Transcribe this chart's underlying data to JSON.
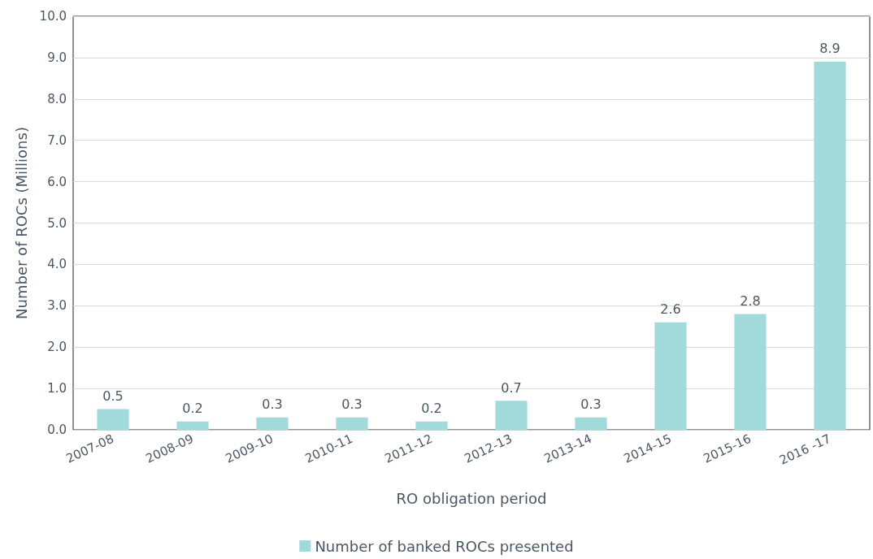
{
  "chart_data": {
    "type": "bar",
    "xlabel": "RO obligation period",
    "ylabel": "Number of ROCs (Millions)",
    "categories": [
      "2007-08",
      "2008-09",
      "2009-10",
      "2010-11",
      "2011-12",
      "2012-13",
      "2013-14",
      "2014-15",
      "2015-16",
      "2016 -17"
    ],
    "series": [
      {
        "name": "Number of banked ROCs presented",
        "color": "#a2dadb",
        "values": [
          0.5,
          0.2,
          0.3,
          0.3,
          0.2,
          0.7,
          0.3,
          2.6,
          2.8,
          8.9
        ]
      }
    ],
    "ylim": [
      0,
      10
    ],
    "yticks": [
      {
        "value": 0,
        "label": "0.0"
      },
      {
        "value": 1,
        "label": "1.0"
      },
      {
        "value": 2,
        "label": "2.0"
      },
      {
        "value": 3,
        "label": "3.0"
      },
      {
        "value": 4,
        "label": "4.0"
      },
      {
        "value": 5,
        "label": "5.0"
      },
      {
        "value": 6,
        "label": "6.0"
      },
      {
        "value": 7,
        "label": "7.0"
      },
      {
        "value": 8,
        "label": "8.0"
      },
      {
        "value": 9,
        "label": "9.0"
      },
      {
        "value": 10,
        "label": "10.0"
      }
    ],
    "grid": "y",
    "legend": "bottom",
    "data_labels": true
  }
}
